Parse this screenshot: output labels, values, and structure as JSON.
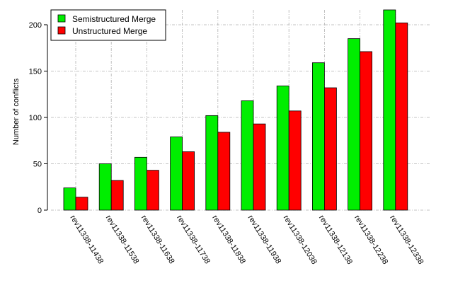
{
  "chart_data": {
    "type": "bar",
    "categories": [
      "rev11338-11438",
      "rev11338-11538",
      "rev11338-11638",
      "rev11338-11738",
      "rev11338-11838",
      "rev11338-11938",
      "rev11338-12038",
      "rev11338-12138",
      "rev11338-12238",
      "rev11338-12338"
    ],
    "series": [
      {
        "name": "Semistructured Merge",
        "color": "#00ee00",
        "values": [
          24,
          50,
          57,
          79,
          102,
          118,
          134,
          159,
          185,
          216
        ]
      },
      {
        "name": "Unstructured Merge",
        "color": "#ff0000",
        "values": [
          14,
          32,
          43,
          63,
          84,
          93,
          107,
          132,
          171,
          202
        ]
      }
    ],
    "ylabel": "Number of conflicts",
    "ylim": [
      0,
      216
    ],
    "yticks": [
      0,
      50,
      100,
      150,
      200
    ],
    "grid": true,
    "legend_position": "top-left"
  }
}
